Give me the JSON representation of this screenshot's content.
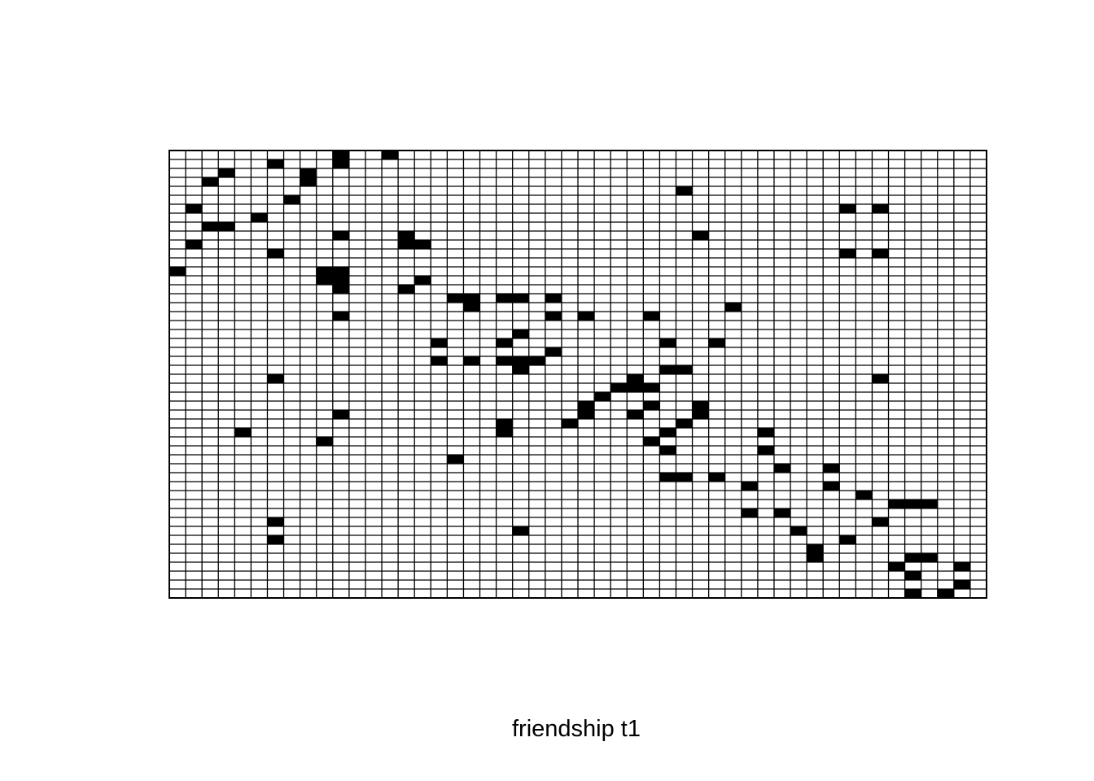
{
  "chart_data": {
    "type": "heatmap",
    "title": "",
    "xlabel": "friendship t1",
    "ylabel": "",
    "n_rows": 50,
    "n_cols": 50,
    "cell_fill": "#000000",
    "empty_fill": "#ffffff",
    "grid_color": "#000000",
    "grid": true,
    "filled_cells": [
      [
        0,
        10
      ],
      [
        0,
        13
      ],
      [
        1,
        6
      ],
      [
        1,
        10
      ],
      [
        2,
        3
      ],
      [
        2,
        8
      ],
      [
        3,
        2
      ],
      [
        3,
        8
      ],
      [
        4,
        31
      ],
      [
        5,
        7
      ],
      [
        6,
        1
      ],
      [
        6,
        41
      ],
      [
        6,
        43
      ],
      [
        7,
        5
      ],
      [
        8,
        2
      ],
      [
        8,
        3
      ],
      [
        9,
        10
      ],
      [
        9,
        14
      ],
      [
        9,
        32
      ],
      [
        10,
        1
      ],
      [
        10,
        14
      ],
      [
        10,
        15
      ],
      [
        11,
        6
      ],
      [
        11,
        41
      ],
      [
        11,
        43
      ],
      [
        13,
        0
      ],
      [
        13,
        9
      ],
      [
        13,
        10
      ],
      [
        14,
        9
      ],
      [
        14,
        10
      ],
      [
        14,
        15
      ],
      [
        15,
        10
      ],
      [
        15,
        14
      ],
      [
        16,
        17
      ],
      [
        16,
        18
      ],
      [
        16,
        20
      ],
      [
        16,
        21
      ],
      [
        16,
        23
      ],
      [
        17,
        18
      ],
      [
        17,
        34
      ],
      [
        18,
        10
      ],
      [
        18,
        23
      ],
      [
        18,
        25
      ],
      [
        18,
        29
      ],
      [
        20,
        21
      ],
      [
        21,
        16
      ],
      [
        21,
        20
      ],
      [
        21,
        30
      ],
      [
        21,
        33
      ],
      [
        22,
        23
      ],
      [
        23,
        16
      ],
      [
        23,
        18
      ],
      [
        23,
        20
      ],
      [
        23,
        21
      ],
      [
        23,
        22
      ],
      [
        24,
        21
      ],
      [
        24,
        30
      ],
      [
        24,
        31
      ],
      [
        25,
        6
      ],
      [
        25,
        28
      ],
      [
        25,
        43
      ],
      [
        26,
        27
      ],
      [
        26,
        28
      ],
      [
        26,
        29
      ],
      [
        27,
        26
      ],
      [
        28,
        25
      ],
      [
        28,
        29
      ],
      [
        28,
        32
      ],
      [
        29,
        10
      ],
      [
        29,
        25
      ],
      [
        29,
        28
      ],
      [
        29,
        32
      ],
      [
        30,
        20
      ],
      [
        30,
        24
      ],
      [
        30,
        31
      ],
      [
        31,
        4
      ],
      [
        31,
        20
      ],
      [
        31,
        30
      ],
      [
        31,
        36
      ],
      [
        32,
        9
      ],
      [
        32,
        29
      ],
      [
        33,
        30
      ],
      [
        33,
        36
      ],
      [
        34,
        17
      ],
      [
        35,
        37
      ],
      [
        35,
        40
      ],
      [
        36,
        30
      ],
      [
        36,
        31
      ],
      [
        36,
        33
      ],
      [
        37,
        35
      ],
      [
        37,
        40
      ],
      [
        38,
        42
      ],
      [
        39,
        44
      ],
      [
        39,
        45
      ],
      [
        39,
        46
      ],
      [
        40,
        35
      ],
      [
        40,
        37
      ],
      [
        41,
        6
      ],
      [
        41,
        43
      ],
      [
        42,
        21
      ],
      [
        42,
        38
      ],
      [
        43,
        6
      ],
      [
        43,
        41
      ],
      [
        44,
        39
      ],
      [
        45,
        39
      ],
      [
        45,
        45
      ],
      [
        45,
        46
      ],
      [
        46,
        44
      ],
      [
        46,
        48
      ],
      [
        47,
        45
      ],
      [
        48,
        48
      ],
      [
        49,
        45
      ],
      [
        49,
        47
      ]
    ]
  }
}
